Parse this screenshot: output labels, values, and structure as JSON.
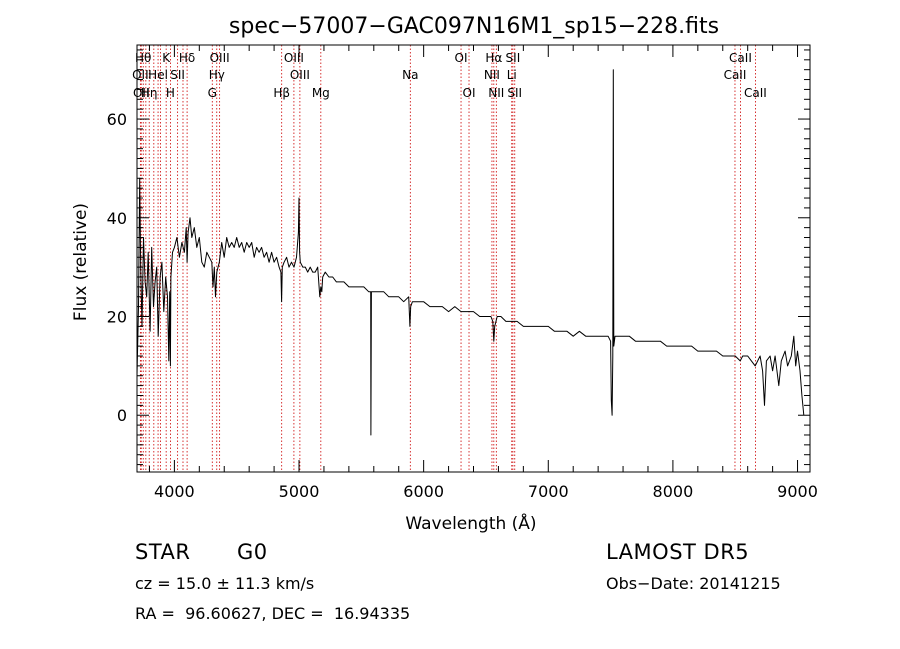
{
  "chart_data": {
    "type": "line",
    "title": "spec−57007−GAC097N16M1_sp15−228.fits",
    "xlabel": "Wavelength (Å)",
    "ylabel": "Flux (relative)",
    "xlim": [
      3700,
      9100
    ],
    "ylim": [
      -11.5,
      75
    ],
    "x_ticks": [
      4000,
      5000,
      6000,
      7000,
      8000,
      9000
    ],
    "y_ticks": [
      0,
      20,
      40,
      60
    ],
    "grid": false,
    "series": [
      {
        "values": [
          [
            3700,
            8
          ],
          [
            3712,
            22
          ],
          [
            3722,
            48
          ],
          [
            3730,
            30
          ],
          [
            3740,
            18
          ],
          [
            3752,
            36
          ],
          [
            3765,
            27
          ],
          [
            3778,
            24
          ],
          [
            3790,
            33
          ],
          [
            3805,
            17
          ],
          [
            3818,
            34
          ],
          [
            3832,
            22
          ],
          [
            3845,
            27
          ],
          [
            3858,
            30
          ],
          [
            3870,
            16
          ],
          [
            3885,
            28
          ],
          [
            3900,
            31
          ],
          [
            3915,
            21
          ],
          [
            3930,
            28
          ],
          [
            3945,
            24
          ],
          [
            3955,
            11
          ],
          [
            3962,
            25
          ],
          [
            3968,
            10
          ],
          [
            3972,
            28
          ],
          [
            3985,
            33
          ],
          [
            4000,
            34
          ],
          [
            4020,
            36
          ],
          [
            4040,
            32
          ],
          [
            4060,
            35
          ],
          [
            4080,
            33
          ],
          [
            4095,
            38
          ],
          [
            4102,
            31
          ],
          [
            4110,
            37
          ],
          [
            4125,
            40
          ],
          [
            4140,
            36
          ],
          [
            4160,
            38
          ],
          [
            4180,
            34
          ],
          [
            4200,
            36
          ],
          [
            4220,
            31
          ],
          [
            4240,
            30
          ],
          [
            4260,
            33
          ],
          [
            4280,
            32
          ],
          [
            4300,
            31
          ],
          [
            4310,
            26
          ],
          [
            4320,
            30
          ],
          [
            4330,
            24
          ],
          [
            4340,
            29
          ],
          [
            4360,
            31
          ],
          [
            4380,
            35
          ],
          [
            4400,
            32
          ],
          [
            4420,
            36
          ],
          [
            4440,
            34
          ],
          [
            4460,
            35
          ],
          [
            4480,
            34
          ],
          [
            4500,
            36
          ],
          [
            4520,
            34
          ],
          [
            4540,
            35
          ],
          [
            4560,
            33
          ],
          [
            4580,
            35
          ],
          [
            4600,
            34
          ],
          [
            4620,
            35
          ],
          [
            4640,
            32
          ],
          [
            4660,
            34
          ],
          [
            4680,
            33
          ],
          [
            4700,
            34
          ],
          [
            4720,
            32
          ],
          [
            4740,
            33
          ],
          [
            4760,
            31
          ],
          [
            4780,
            33
          ],
          [
            4800,
            31
          ],
          [
            4820,
            32
          ],
          [
            4840,
            30
          ],
          [
            4855,
            29
          ],
          [
            4860,
            23
          ],
          [
            4866,
            30
          ],
          [
            4880,
            31
          ],
          [
            4900,
            32
          ],
          [
            4920,
            30
          ],
          [
            4940,
            31
          ],
          [
            4960,
            30
          ],
          [
            4980,
            32
          ],
          [
            4995,
            37
          ],
          [
            5000,
            44
          ],
          [
            5005,
            33
          ],
          [
            5010,
            31
          ],
          [
            5030,
            30
          ],
          [
            5050,
            30
          ],
          [
            5070,
            29
          ],
          [
            5090,
            30
          ],
          [
            5110,
            29
          ],
          [
            5130,
            29
          ],
          [
            5150,
            30
          ],
          [
            5167,
            24
          ],
          [
            5175,
            26
          ],
          [
            5183,
            25
          ],
          [
            5190,
            28
          ],
          [
            5210,
            29
          ],
          [
            5240,
            28
          ],
          [
            5270,
            28
          ],
          [
            5300,
            27
          ],
          [
            5330,
            27
          ],
          [
            5360,
            27
          ],
          [
            5400,
            26
          ],
          [
            5440,
            26
          ],
          [
            5480,
            26
          ],
          [
            5520,
            26
          ],
          [
            5560,
            25
          ],
          [
            5575,
            25
          ],
          [
            5577,
            -4
          ],
          [
            5581,
            25
          ],
          [
            5600,
            25
          ],
          [
            5640,
            25
          ],
          [
            5680,
            25
          ],
          [
            5720,
            24
          ],
          [
            5760,
            24
          ],
          [
            5800,
            24
          ],
          [
            5840,
            23
          ],
          [
            5880,
            24
          ],
          [
            5890,
            18
          ],
          [
            5896,
            22
          ],
          [
            5910,
            23
          ],
          [
            5950,
            23
          ],
          [
            6000,
            23
          ],
          [
            6050,
            22
          ],
          [
            6100,
            22
          ],
          [
            6150,
            22
          ],
          [
            6200,
            21
          ],
          [
            6250,
            22
          ],
          [
            6300,
            21
          ],
          [
            6350,
            21
          ],
          [
            6400,
            21
          ],
          [
            6450,
            20
          ],
          [
            6500,
            20
          ],
          [
            6540,
            20
          ],
          [
            6555,
            19
          ],
          [
            6563,
            15
          ],
          [
            6570,
            18
          ],
          [
            6590,
            20
          ],
          [
            6620,
            20
          ],
          [
            6660,
            19
          ],
          [
            6700,
            19
          ],
          [
            6750,
            19
          ],
          [
            6800,
            18
          ],
          [
            6850,
            18
          ],
          [
            6900,
            18
          ],
          [
            6950,
            18
          ],
          [
            7000,
            18
          ],
          [
            7050,
            17
          ],
          [
            7100,
            17
          ],
          [
            7150,
            17
          ],
          [
            7200,
            16
          ],
          [
            7250,
            17
          ],
          [
            7300,
            16
          ],
          [
            7350,
            16
          ],
          [
            7400,
            16
          ],
          [
            7450,
            16
          ],
          [
            7480,
            16
          ],
          [
            7500,
            15
          ],
          [
            7506,
            3
          ],
          [
            7512,
            0
          ],
          [
            7518,
            12
          ],
          [
            7522,
            70
          ],
          [
            7526,
            14
          ],
          [
            7535,
            16
          ],
          [
            7560,
            16
          ],
          [
            7600,
            16
          ],
          [
            7650,
            16
          ],
          [
            7700,
            15
          ],
          [
            7750,
            15
          ],
          [
            7800,
            15
          ],
          [
            7850,
            15
          ],
          [
            7900,
            15
          ],
          [
            7950,
            14
          ],
          [
            8000,
            14
          ],
          [
            8050,
            14
          ],
          [
            8100,
            14
          ],
          [
            8150,
            14
          ],
          [
            8200,
            13
          ],
          [
            8250,
            13
          ],
          [
            8300,
            13
          ],
          [
            8350,
            13
          ],
          [
            8400,
            12
          ],
          [
            8450,
            12
          ],
          [
            8500,
            12
          ],
          [
            8540,
            11
          ],
          [
            8560,
            12
          ],
          [
            8600,
            12
          ],
          [
            8630,
            11
          ],
          [
            8660,
            10
          ],
          [
            8700,
            12
          ],
          [
            8720,
            9
          ],
          [
            8735,
            2
          ],
          [
            8750,
            11
          ],
          [
            8780,
            12
          ],
          [
            8800,
            9
          ],
          [
            8820,
            12
          ],
          [
            8850,
            6
          ],
          [
            8870,
            11
          ],
          [
            8900,
            13
          ],
          [
            8920,
            10
          ],
          [
            8950,
            12
          ],
          [
            8970,
            16
          ],
          [
            8985,
            10
          ],
          [
            9000,
            13
          ],
          [
            9020,
            9
          ],
          [
            9035,
            4
          ],
          [
            9050,
            0
          ]
        ]
      }
    ],
    "line_markers": [
      {
        "x": 3727,
        "label": "OII"
      },
      {
        "x": 3734,
        "label": "OII"
      },
      {
        "x": 3750,
        "label": "Hθ"
      },
      {
        "x": 3771,
        "label": "Hη"
      },
      {
        "x": 3798,
        "label": "Hη"
      },
      {
        "x": 3835,
        "label": "Hη"
      },
      {
        "x": 3869,
        "label": "Hel"
      },
      {
        "x": 3889,
        "label": "Hel"
      },
      {
        "x": 3934,
        "label": "K"
      },
      {
        "x": 3968,
        "label": "H"
      },
      {
        "x": 4026,
        "label": "SII"
      },
      {
        "x": 4069,
        "label": "SII"
      },
      {
        "x": 4102,
        "label": "Hδ"
      },
      {
        "x": 4304,
        "label": "G"
      },
      {
        "x": 4340,
        "label": "Hγ"
      },
      {
        "x": 4363,
        "label": "OIII"
      },
      {
        "x": 4861,
        "label": "Hβ"
      },
      {
        "x": 4959,
        "label": "OIII"
      },
      {
        "x": 5007,
        "label": "OIII"
      },
      {
        "x": 5175,
        "label": "Mg"
      },
      {
        "x": 5893,
        "label": "Na"
      },
      {
        "x": 6300,
        "label": "OI"
      },
      {
        "x": 6364,
        "label": "OI"
      },
      {
        "x": 6548,
        "label": "NII"
      },
      {
        "x": 6563,
        "label": "Hα"
      },
      {
        "x": 6583,
        "label": "NII"
      },
      {
        "x": 6707,
        "label": "Li"
      },
      {
        "x": 6716,
        "label": "SII"
      },
      {
        "x": 6731,
        "label": "SII"
      },
      {
        "x": 8498,
        "label": "CaII"
      },
      {
        "x": 8542,
        "label": "CaII"
      },
      {
        "x": 8662,
        "label": "CaII"
      }
    ],
    "line_labels": [
      {
        "text": "Hθ",
        "x": 3750,
        "row": 0
      },
      {
        "text": "K",
        "x": 3934,
        "row": 0
      },
      {
        "text": "Hδ",
        "x": 4102,
        "row": 0
      },
      {
        "text": "OIII",
        "x": 4363,
        "row": 0
      },
      {
        "text": "OIII",
        "x": 4959,
        "row": 0
      },
      {
        "text": "OI",
        "x": 6300,
        "row": 0
      },
      {
        "text": "Hα",
        "x": 6563,
        "row": 0
      },
      {
        "text": "SII",
        "x": 6716,
        "row": 0
      },
      {
        "text": "CaII",
        "x": 8542,
        "row": 0
      },
      {
        "text": "OII",
        "x": 3727,
        "row": 1
      },
      {
        "text": "Hel",
        "x": 3869,
        "row": 1
      },
      {
        "text": "SII",
        "x": 4026,
        "row": 1
      },
      {
        "text": "Hγ",
        "x": 4340,
        "row": 1
      },
      {
        "text": "OIII",
        "x": 5007,
        "row": 1
      },
      {
        "text": "Na",
        "x": 5893,
        "row": 1
      },
      {
        "text": "NII",
        "x": 6548,
        "row": 1
      },
      {
        "text": "Li",
        "x": 6707,
        "row": 1
      },
      {
        "text": "CaII",
        "x": 8498,
        "row": 1
      },
      {
        "text": "OII",
        "x": 3734,
        "row": 2
      },
      {
        "text": "Hη",
        "x": 3798,
        "row": 2
      },
      {
        "text": "H",
        "x": 3968,
        "row": 2
      },
      {
        "text": "G",
        "x": 4304,
        "row": 2
      },
      {
        "text": "Hβ",
        "x": 4861,
        "row": 2
      },
      {
        "text": "Mg",
        "x": 5175,
        "row": 2
      },
      {
        "text": "OI",
        "x": 6364,
        "row": 2
      },
      {
        "text": "NII",
        "x": 6583,
        "row": 2
      },
      {
        "text": "SII",
        "x": 6731,
        "row": 2
      },
      {
        "text": "CaII",
        "x": 8662,
        "row": 2
      }
    ],
    "colors": {
      "spectrum": "#000000",
      "line_markers": "#cc0000"
    }
  },
  "info": {
    "class": "STAR",
    "subclass": "G0",
    "survey": "LAMOST DR5",
    "redshift": "cz = 15.0 ± 11.3 km/s",
    "obs_date": "Obs−Date: 20141215",
    "coords": "RA =  96.60627, DEC =  16.94335"
  }
}
